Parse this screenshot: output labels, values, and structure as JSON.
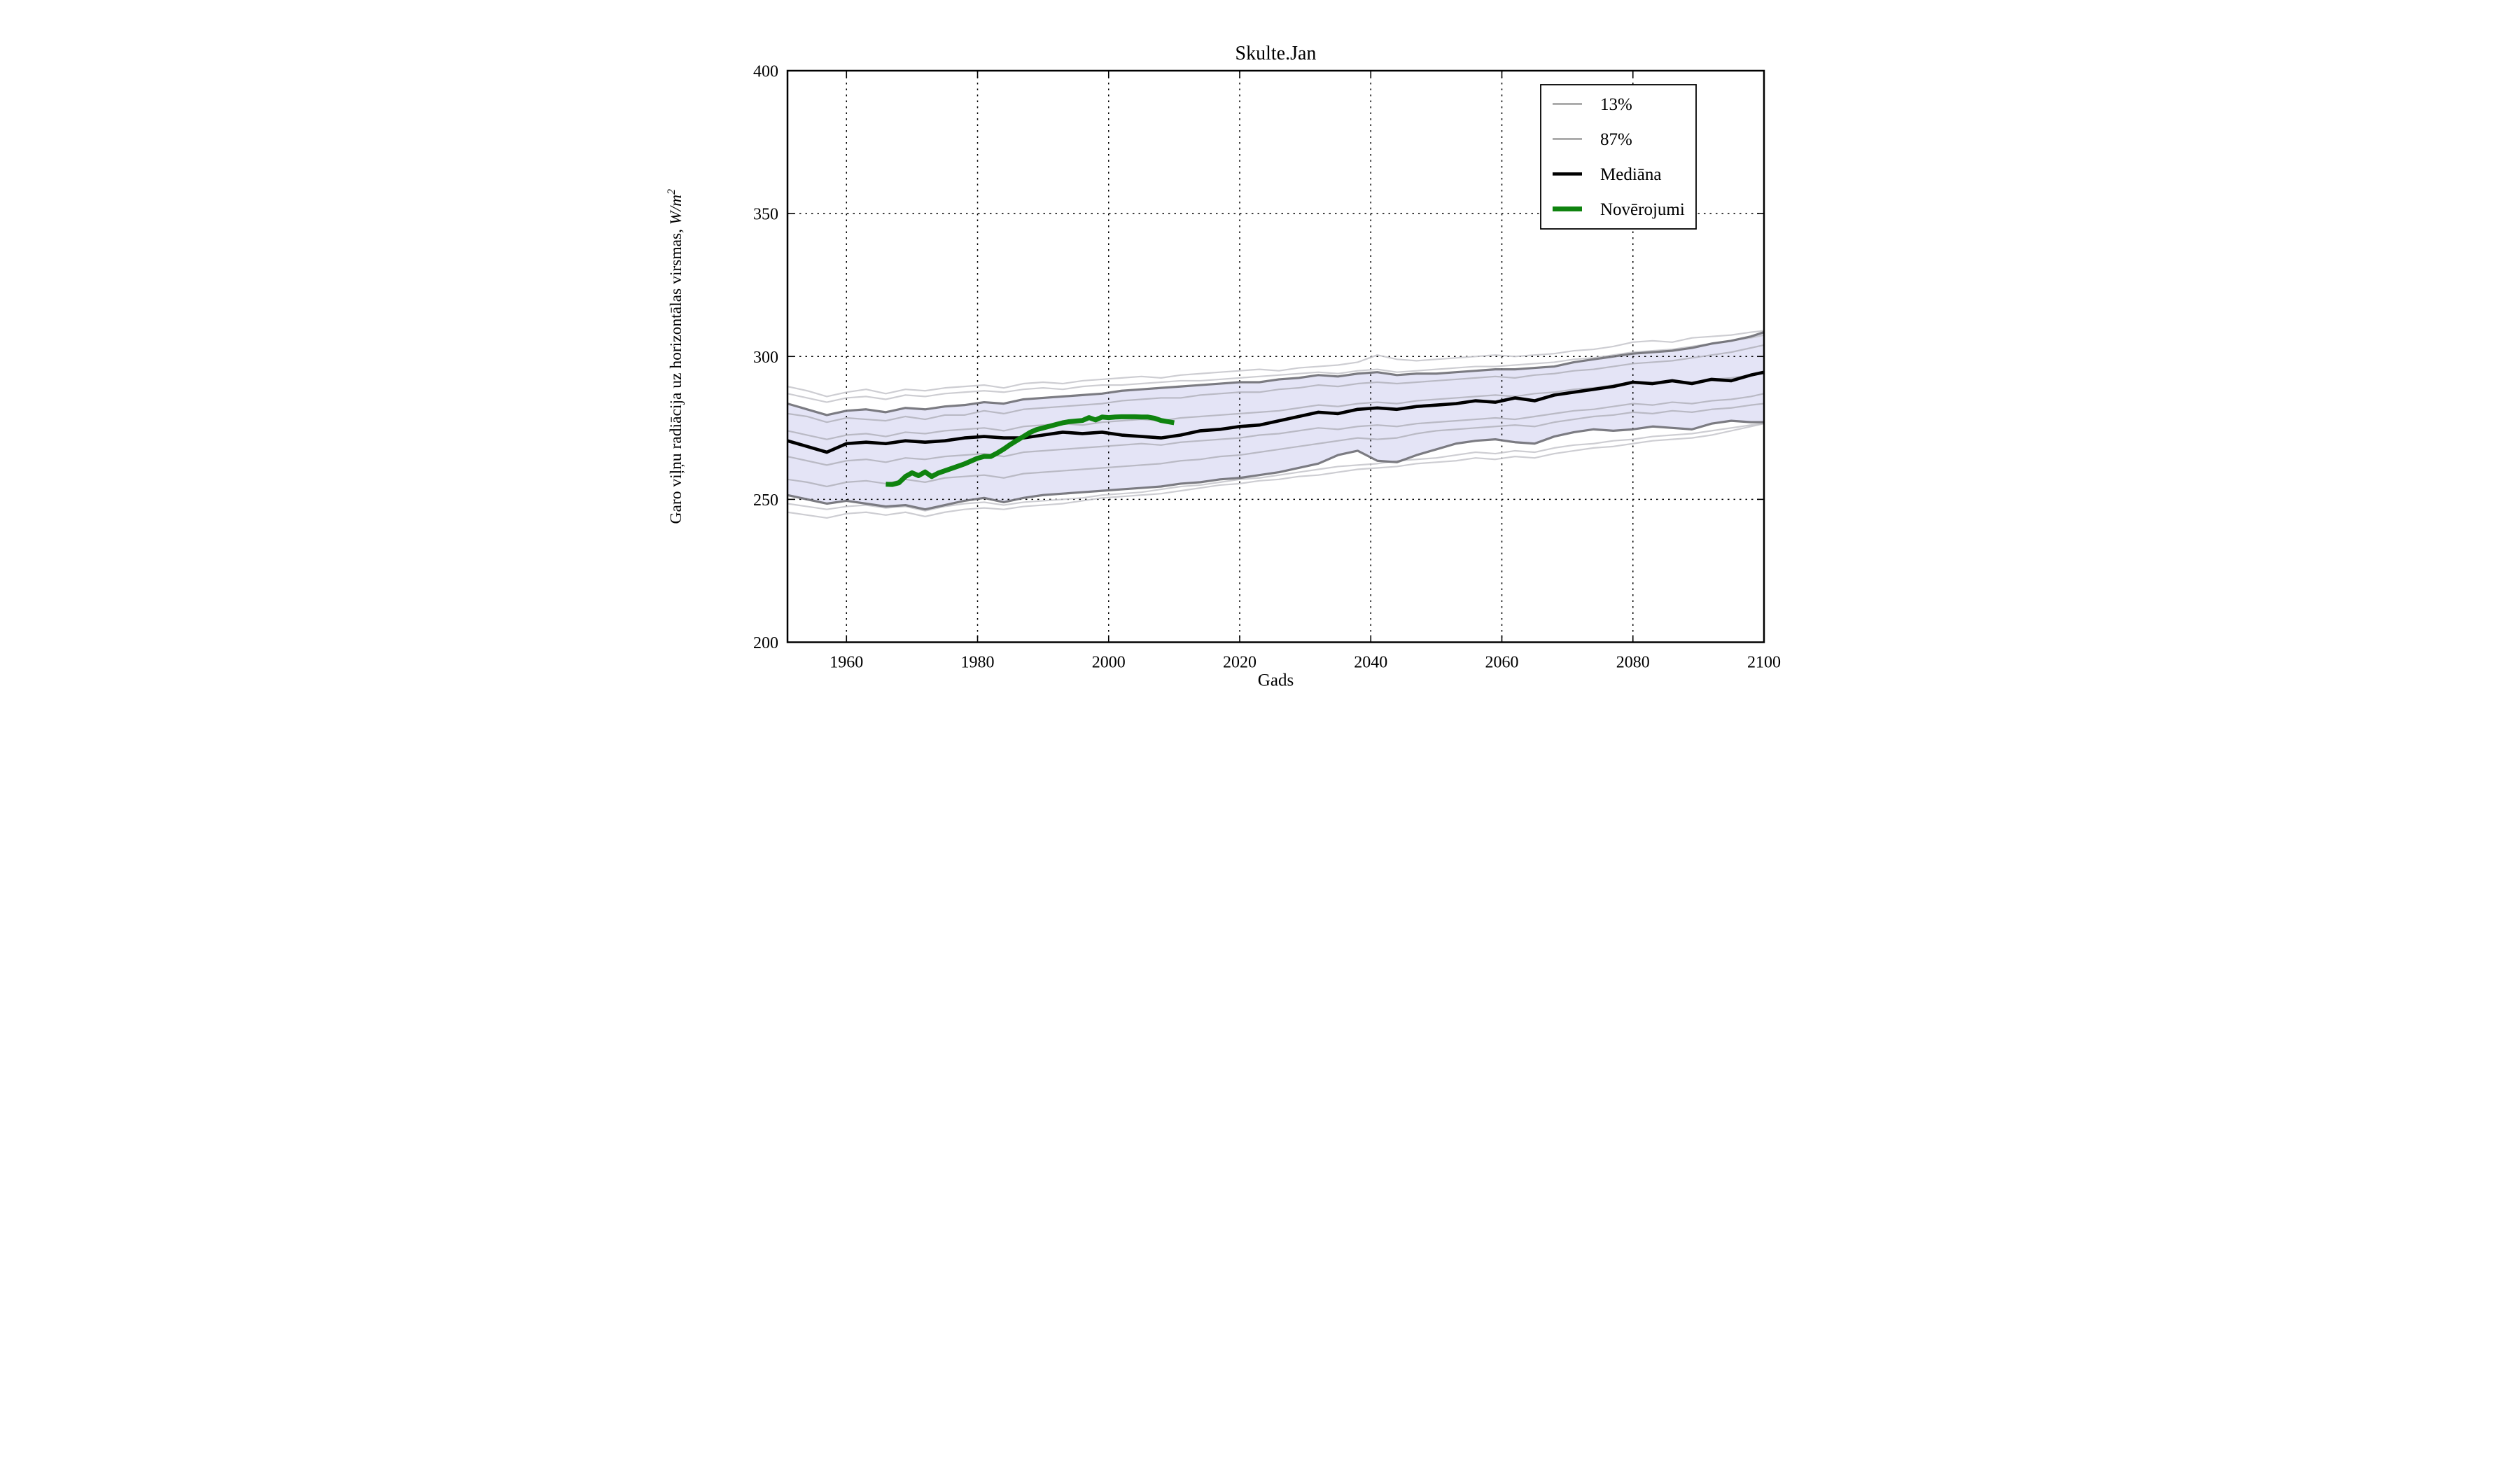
{
  "figure": {
    "title": "Skulte.Jan",
    "xlabel": "Gads",
    "ylabel": "Garo viļņu radiācija uz horizontālas virsmas, W/m²"
  },
  "chart_data": {
    "type": "line",
    "title": "Skulte.Jan",
    "xlabel": "Gads",
    "ylabel": "Garo viļņu radiācija uz horizontālas virsmas, W/m²",
    "ylabel_prefix": "Garo viļņu radiācija uz horizontālas virsmas, ",
    "ylabel_unit": "W/m",
    "ylabel_exponent": "2",
    "xlim": [
      1951,
      2100
    ],
    "ylim": [
      200,
      400
    ],
    "xticks": [
      1960,
      1980,
      2000,
      2020,
      2040,
      2060,
      2080,
      2100
    ],
    "yticks": [
      200,
      250,
      300,
      350,
      400
    ],
    "grid": true,
    "legend_position": "upper right",
    "colors": {
      "band_fill": "#e4e4f6",
      "band_edge": "#6e6e74",
      "median": "#000000",
      "observations": "#0f830f",
      "run": "#b2b2bb",
      "run_light": "#c4c4ca",
      "grid": "#000000",
      "legend_gray": "#8f8f8f"
    },
    "years": [
      1951,
      1954,
      1957,
      1960,
      1963,
      1966,
      1969,
      1972,
      1975,
      1978,
      1981,
      1984,
      1987,
      1990,
      1993,
      1996,
      1999,
      2002,
      2005,
      2008,
      2011,
      2014,
      2017,
      2020,
      2023,
      2026,
      2029,
      2032,
      2035,
      2038,
      2041,
      2044,
      2047,
      2050,
      2053,
      2056,
      2059,
      2062,
      2065,
      2068,
      2071,
      2074,
      2077,
      2080,
      2083,
      2086,
      2089,
      2092,
      2095,
      2098,
      2100
    ],
    "series": [
      {
        "name": "87%",
        "role": "band-upper",
        "width": 3.2,
        "values": [
          283.5,
          281.5,
          279.5,
          281,
          281.5,
          280.5,
          282,
          281.5,
          282.5,
          283,
          284,
          283.5,
          285,
          285.5,
          286,
          286.5,
          287,
          288,
          288.5,
          289,
          289.5,
          290,
          290.5,
          291,
          291,
          292,
          292.5,
          293.5,
          293,
          294,
          294.5,
          293.5,
          294,
          294,
          294.5,
          295,
          295.5,
          295.5,
          296,
          296.5,
          298,
          299,
          300,
          301,
          301.5,
          302,
          303,
          304.5,
          305.5,
          307,
          308.5
        ]
      },
      {
        "name": "13%",
        "role": "band-lower",
        "width": 3.2,
        "values": [
          251.5,
          250,
          248.5,
          249.5,
          248.5,
          247.5,
          248,
          246.5,
          248,
          249.5,
          250.5,
          249,
          250.5,
          251.5,
          252,
          252.5,
          253,
          253.5,
          254,
          254.5,
          255.5,
          256,
          257,
          257.5,
          258.5,
          259.5,
          261,
          262.5,
          265.5,
          267,
          263.5,
          263,
          265.5,
          267.5,
          269.5,
          270.5,
          271,
          270,
          269.5,
          272,
          273.5,
          274.5,
          274,
          274.5,
          275.5,
          275,
          274.5,
          276.5,
          277.5,
          277,
          277
        ]
      },
      {
        "name": "Mediāna",
        "role": "median",
        "width": 4.6,
        "values": [
          270.5,
          268.5,
          266.5,
          269.5,
          270,
          269.5,
          270.5,
          270,
          270.5,
          271.5,
          272,
          271.5,
          271.5,
          272.5,
          273.5,
          273,
          273.5,
          272.5,
          272,
          271.5,
          272.5,
          274,
          274.5,
          275.5,
          276,
          277.5,
          279,
          280.5,
          280,
          281.5,
          282,
          281.5,
          282.5,
          283,
          283.5,
          284.5,
          284,
          285.5,
          284.5,
          286.5,
          287.5,
          288.5,
          289.5,
          291,
          290.5,
          291.5,
          290.5,
          292,
          291.5,
          293.5,
          294.5
        ]
      }
    ],
    "ensemble_runs": [
      {
        "name": "run-max",
        "light": true,
        "values": [
          289.5,
          288,
          286,
          287.5,
          288.5,
          287,
          288.5,
          288,
          289,
          289.5,
          290,
          289,
          290.5,
          291,
          290.5,
          291.5,
          292,
          292.5,
          293,
          292.5,
          293.5,
          294,
          294.5,
          295,
          295.5,
          295,
          296,
          296.5,
          297,
          298,
          300.5,
          299,
          298.5,
          299,
          299.5,
          300,
          300.5,
          300,
          300.5,
          301,
          302,
          302.5,
          303.5,
          305,
          305.5,
          305,
          306.5,
          307,
          307.5,
          308.5,
          309
        ]
      },
      {
        "name": "run-upper2",
        "light": true,
        "values": [
          287,
          285.5,
          284,
          285.5,
          286,
          285,
          286.5,
          286,
          287,
          287.5,
          288,
          287.5,
          288.5,
          289,
          288.5,
          289.5,
          290,
          290,
          290.5,
          291,
          291.5,
          291.5,
          292,
          292.5,
          293,
          293.5,
          294,
          294.5,
          294,
          295,
          295.5,
          294.5,
          295,
          295.5,
          296,
          296.5,
          296.5,
          297,
          297.5,
          298,
          299,
          299.5,
          300.5,
          301.5,
          302,
          302.5,
          303.5,
          304.5,
          305.5,
          306.5,
          307.5
        ]
      },
      {
        "name": "run-min",
        "light": true,
        "values": [
          245.5,
          244.5,
          243.5,
          245,
          245.5,
          244.5,
          245.5,
          244,
          245.5,
          246.5,
          247,
          246.5,
          247.5,
          248,
          248.5,
          249.5,
          250.5,
          251,
          251.5,
          252,
          253,
          254,
          255,
          255.5,
          256.5,
          257,
          258,
          258.5,
          259.5,
          260.5,
          261,
          261.5,
          262.5,
          263,
          263.5,
          264.5,
          264,
          265,
          264.5,
          266,
          267,
          268,
          268.5,
          269.5,
          270.5,
          271,
          271.5,
          272.5,
          274,
          275.5,
          276.5
        ]
      },
      {
        "name": "run-lower2",
        "light": true,
        "values": [
          248.5,
          247.5,
          246.5,
          247.5,
          248,
          247,
          247.5,
          246,
          247.5,
          248.5,
          249,
          248,
          249,
          249.5,
          250,
          250.5,
          251.5,
          252,
          252.5,
          253.5,
          254.5,
          255,
          256,
          257,
          257.5,
          258.5,
          259.5,
          260.5,
          261.5,
          262,
          262.5,
          263.5,
          264,
          264.5,
          265.5,
          266.5,
          266,
          267,
          266.5,
          268,
          269,
          269.5,
          270.5,
          271,
          272,
          272.5,
          273,
          274,
          275,
          276,
          276.5
        ]
      },
      {
        "name": "run-1",
        "light": false,
        "values": [
          280,
          279,
          277,
          278.5,
          278,
          277.5,
          279,
          278,
          279.5,
          279.5,
          281,
          280,
          281.5,
          282,
          282.5,
          283,
          283.5,
          284.5,
          285,
          285.5,
          285.5,
          286.5,
          287,
          287.5,
          287.5,
          288.5,
          289,
          290,
          289.5,
          290.5,
          291,
          290.5,
          291,
          291.5,
          292,
          292.5,
          293,
          292.5,
          293.5,
          294,
          295,
          295.5,
          296.5,
          297.5,
          298,
          298.5,
          299.5,
          300.5,
          301.5,
          303,
          304
        ]
      },
      {
        "name": "run-2",
        "light": false,
        "values": [
          274,
          272.5,
          271,
          272.5,
          273,
          272,
          273.5,
          273,
          274,
          274.5,
          275,
          274,
          275.5,
          276,
          276.5,
          276,
          277,
          277.5,
          278,
          277.5,
          278.5,
          279,
          279.5,
          280,
          280.5,
          281,
          282,
          283,
          282.5,
          283.5,
          284,
          283.5,
          284.5,
          285,
          285.5,
          286,
          286.5,
          286,
          287,
          287.5,
          288.5,
          289,
          290,
          291,
          290.5,
          291.5,
          291,
          292,
          292.5,
          293.5,
          294
        ]
      },
      {
        "name": "run-3",
        "light": false,
        "values": [
          265,
          263.5,
          262,
          263.5,
          264,
          263,
          264.5,
          264,
          265,
          265.5,
          266,
          265,
          266.5,
          267,
          267.5,
          268,
          268.5,
          269,
          269.5,
          269,
          270,
          270.5,
          271,
          271.5,
          272.5,
          273,
          274,
          275,
          274.5,
          275.5,
          276,
          275.5,
          276.5,
          277,
          277.5,
          278,
          278.5,
          278,
          279,
          280,
          281,
          281.5,
          282.5,
          283.5,
          283,
          284,
          283.5,
          284.5,
          285,
          286,
          287
        ]
      },
      {
        "name": "run-4",
        "light": false,
        "values": [
          257,
          256,
          254.5,
          256,
          256.5,
          255.5,
          257,
          256,
          257.5,
          258,
          258.5,
          257.5,
          259,
          259.5,
          260,
          260.5,
          261,
          261.5,
          262,
          262.5,
          263.5,
          264,
          265,
          265.5,
          266.5,
          267.5,
          268.5,
          269.5,
          270.5,
          271.5,
          271,
          271.5,
          273,
          274,
          274.5,
          275,
          275.5,
          276,
          275.5,
          277,
          278,
          279,
          279.5,
          280.5,
          280,
          281,
          280.5,
          281.5,
          282,
          283,
          283.5
        ]
      }
    ],
    "observations": {
      "name": "Novērojumi",
      "width": 7,
      "years": [
        1966,
        1967,
        1968,
        1969,
        1970,
        1971,
        1972,
        1973,
        1974,
        1975,
        1976,
        1977,
        1978,
        1979,
        1980,
        1981,
        1982,
        1983,
        1984,
        1985,
        1986,
        1987,
        1988,
        1989,
        1990,
        1991,
        1992,
        1993,
        1994,
        1995,
        1996,
        1997,
        1998,
        1999,
        2000,
        2001,
        2002,
        2003,
        2004,
        2005,
        2006,
        2007,
        2008,
        2009,
        2010
      ],
      "values": [
        255.3,
        255.2,
        255.8,
        258.0,
        259.3,
        258.3,
        259.6,
        258.0,
        259.2,
        260.0,
        260.8,
        261.6,
        262.4,
        263.4,
        264.4,
        265.0,
        265.0,
        266.2,
        267.6,
        269.2,
        270.6,
        272.0,
        273.4,
        274.4,
        275.0,
        275.6,
        276.2,
        276.8,
        277.2,
        277.4,
        277.6,
        278.6,
        277.8,
        278.8,
        278.6,
        278.8,
        278.9,
        278.9,
        278.9,
        278.8,
        278.8,
        278.4,
        277.6,
        277.2,
        276.8
      ]
    },
    "legend": [
      {
        "label": "13%",
        "color": "#8f8f8f",
        "width": 2.2
      },
      {
        "label": "87%",
        "color": "#8f8f8f",
        "width": 2.2
      },
      {
        "label": "Mediāna",
        "color": "#000000",
        "width": 4.6
      },
      {
        "label": "Novērojumi",
        "color": "#0f830f",
        "width": 7
      }
    ]
  }
}
